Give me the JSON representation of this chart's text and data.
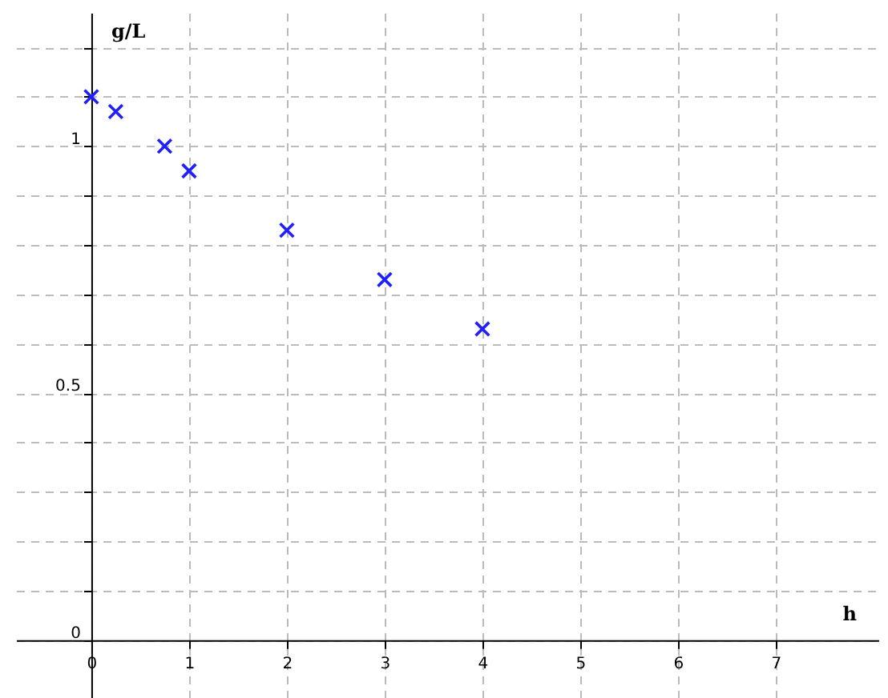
{
  "chart_data": {
    "type": "scatter",
    "xlabel": "h",
    "ylabel": "g/L",
    "x": [
      0,
      0.25,
      0.75,
      1,
      2,
      3,
      4
    ],
    "series": [
      {
        "color": "#2020ff",
        "values": [
          1.1,
          1.07,
          1.0,
          0.95,
          0.83,
          0.73,
          0.63
        ]
      }
    ],
    "marker": "cross",
    "grid": true,
    "xlim": [
      -0.77,
      8.05
    ],
    "xticks": [
      0,
      1,
      2,
      3,
      4,
      5,
      6,
      7
    ],
    "ylim": [
      -0.117,
      1.27
    ],
    "yticks": [
      0,
      {
        "value": 0.1,
        "label": null
      },
      {
        "value": 0.2,
        "label": null
      },
      {
        "value": 0.3,
        "label": null
      },
      {
        "value": 0.4,
        "label": null
      },
      0.5,
      {
        "value": 0.6,
        "label": null
      },
      {
        "value": 0.7,
        "label": null
      },
      {
        "value": 0.8,
        "label": null
      },
      {
        "value": 0.9,
        "label": null
      },
      1,
      {
        "value": 1.1,
        "label": null
      },
      {
        "value": 1.2,
        "label": null
      }
    ]
  }
}
